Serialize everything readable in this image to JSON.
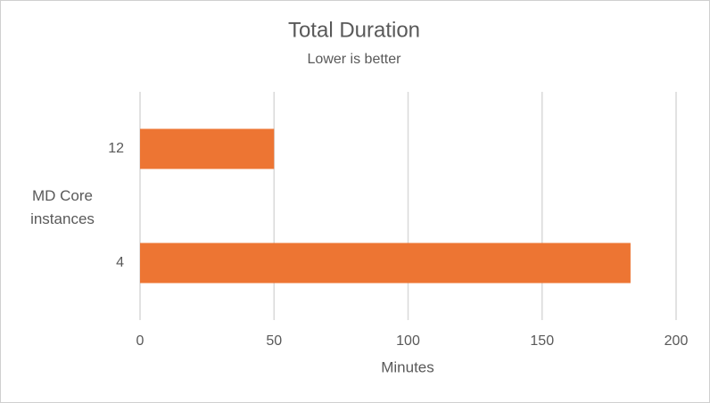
{
  "chart_data": {
    "type": "hbar",
    "title": "Total Duration",
    "subtitle": "Lower is better",
    "x_label": "Minutes",
    "y_label": "MD Core instances",
    "categories": [
      "12",
      "4"
    ],
    "values": [
      50,
      183
    ],
    "color": "#ed7533",
    "xlim": [
      0,
      200
    ],
    "xticks": [
      0,
      50,
      100,
      150,
      200
    ],
    "grid": true
  }
}
